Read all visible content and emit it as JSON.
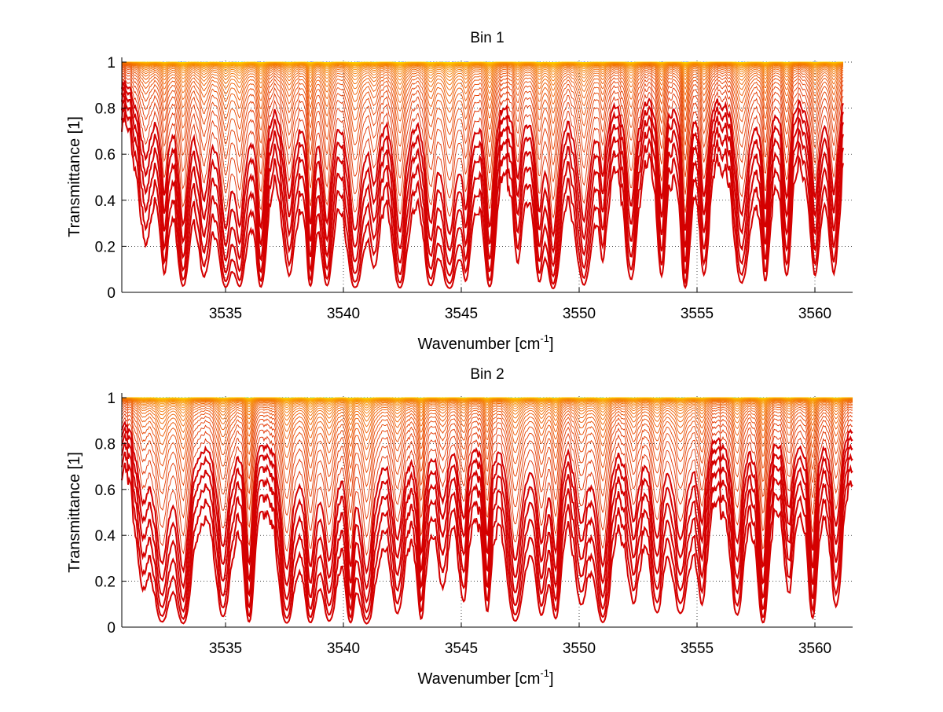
{
  "chart_data": [
    {
      "type": "line",
      "title": "Bin 1",
      "xlabel": "Wavenumber [cm",
      "xlabel_sup": "-1",
      "xlabel_end": "]",
      "ylabel": "Transmittance [1]",
      "xlim": [
        3530.6,
        3561.6
      ],
      "ylim": [
        0,
        1.02
      ],
      "x_data_range": [
        3530.6,
        3561.2
      ],
      "xticks": [
        3535,
        3540,
        3545,
        3550,
        3555,
        3560
      ],
      "yticks": [
        0,
        0.2,
        0.4,
        0.6,
        0.8,
        1
      ],
      "ytick_labels": [
        "0",
        "0.2",
        "0.4",
        "0.6",
        "0.8",
        "1"
      ],
      "grid": "dotted",
      "series_count": 40,
      "colormap": "jet (blue near 1, yellow to red with increasing absorption)",
      "absorption_line_centers": [
        3531.6,
        3532.4,
        3533.2,
        3534.1,
        3535.0,
        3535.6,
        3536.5,
        3537.7,
        3538.6,
        3539.3,
        3540.5,
        3541.3,
        3542.4,
        3543.7,
        3544.5,
        3545.2,
        3546.2,
        3547.4,
        3548.3,
        3548.9,
        3550.2,
        3551.0,
        3552.2,
        3553.5,
        3554.5,
        3555.3,
        3556.9,
        3557.9,
        3558.8,
        3560.0,
        3560.8
      ],
      "seed": 7
    },
    {
      "type": "line",
      "title": "Bin 2",
      "xlabel": "Wavenumber [cm",
      "xlabel_sup": "-1",
      "xlabel_end": "]",
      "ylabel": "Transmittance [1]",
      "xlim": [
        3530.6,
        3561.6
      ],
      "ylim": [
        0,
        1.02
      ],
      "x_data_range": [
        3530.6,
        3561.6
      ],
      "xticks": [
        3535,
        3540,
        3545,
        3550,
        3555,
        3560
      ],
      "yticks": [
        0,
        0.2,
        0.4,
        0.6,
        0.8,
        1
      ],
      "ytick_labels": [
        "0",
        "0.2",
        "0.4",
        "0.6",
        "0.8",
        "1"
      ],
      "grid": "dotted",
      "series_count": 40,
      "colormap": "jet (cyan near 1, yellow to red with increasing absorption)",
      "absorption_line_centers": [
        3531.5,
        3532.3,
        3533.2,
        3534.9,
        3536.0,
        3537.6,
        3538.6,
        3539.4,
        3540.3,
        3541.0,
        3542.3,
        3543.3,
        3544.2,
        3545.1,
        3546.1,
        3547.3,
        3548.4,
        3549.0,
        3550.1,
        3551.0,
        3552.3,
        3553.3,
        3554.3,
        3555.2,
        3556.7,
        3557.8,
        3558.9,
        3559.9,
        3560.9
      ],
      "seed": 13
    }
  ]
}
